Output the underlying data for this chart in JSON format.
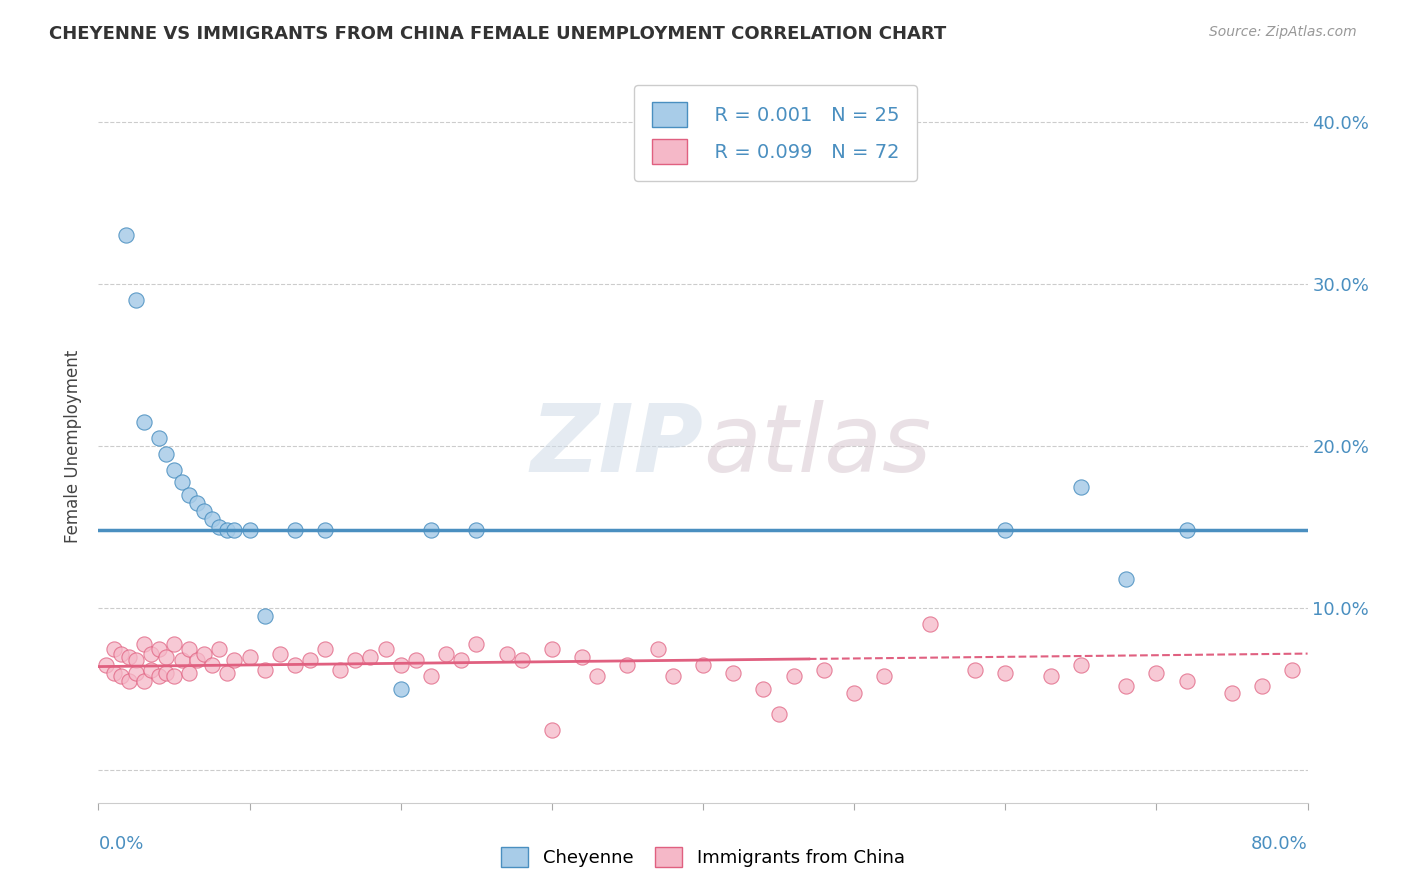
{
  "title": "CHEYENNE VS IMMIGRANTS FROM CHINA FEMALE UNEMPLOYMENT CORRELATION CHART",
  "source": "Source: ZipAtlas.com",
  "ylabel": "Female Unemployment",
  "legend_labels": [
    "Cheyenne",
    "Immigrants from China"
  ],
  "legend_r": [
    "R = 0.001",
    "R = 0.099"
  ],
  "legend_n": [
    "N = 25",
    "N = 72"
  ],
  "x_min": 0.0,
  "x_max": 0.8,
  "y_min": -0.02,
  "y_max": 0.42,
  "yticks": [
    0.0,
    0.1,
    0.2,
    0.3,
    0.4
  ],
  "ytick_labels": [
    "",
    "10.0%",
    "20.0%",
    "30.0%",
    "40.0%"
  ],
  "color_blue": "#a8cce8",
  "color_pink": "#f5b8c8",
  "color_blue_dark": "#4a8fc0",
  "color_pink_dark": "#e06080",
  "watermark_zip": "ZIP",
  "watermark_atlas": "atlas",
  "cheyenne_x": [
    0.018,
    0.025,
    0.03,
    0.04,
    0.045,
    0.05,
    0.055,
    0.06,
    0.065,
    0.07,
    0.075,
    0.08,
    0.085,
    0.09,
    0.1,
    0.11,
    0.13,
    0.15,
    0.2,
    0.22,
    0.25,
    0.6,
    0.65,
    0.68,
    0.72
  ],
  "cheyenne_y": [
    0.33,
    0.29,
    0.215,
    0.205,
    0.195,
    0.185,
    0.178,
    0.17,
    0.165,
    0.16,
    0.155,
    0.15,
    0.148,
    0.148,
    0.148,
    0.095,
    0.148,
    0.148,
    0.05,
    0.148,
    0.148,
    0.148,
    0.175,
    0.118,
    0.148
  ],
  "cheyenne_trend_x": [
    0.0,
    0.8
  ],
  "cheyenne_trend_y": [
    0.148,
    0.148
  ],
  "immigrants_x": [
    0.005,
    0.01,
    0.01,
    0.015,
    0.015,
    0.02,
    0.02,
    0.025,
    0.025,
    0.03,
    0.03,
    0.035,
    0.035,
    0.04,
    0.04,
    0.045,
    0.045,
    0.05,
    0.05,
    0.055,
    0.06,
    0.06,
    0.065,
    0.07,
    0.075,
    0.08,
    0.085,
    0.09,
    0.1,
    0.11,
    0.12,
    0.13,
    0.14,
    0.15,
    0.16,
    0.17,
    0.18,
    0.19,
    0.2,
    0.21,
    0.22,
    0.23,
    0.24,
    0.25,
    0.27,
    0.28,
    0.3,
    0.32,
    0.33,
    0.35,
    0.37,
    0.38,
    0.4,
    0.42,
    0.44,
    0.46,
    0.48,
    0.5,
    0.52,
    0.55,
    0.58,
    0.6,
    0.63,
    0.65,
    0.68,
    0.7,
    0.72,
    0.75,
    0.77,
    0.79,
    0.3,
    0.45
  ],
  "immigrants_y": [
    0.065,
    0.075,
    0.06,
    0.072,
    0.058,
    0.07,
    0.055,
    0.068,
    0.06,
    0.078,
    0.055,
    0.072,
    0.062,
    0.075,
    0.058,
    0.07,
    0.06,
    0.078,
    0.058,
    0.068,
    0.075,
    0.06,
    0.068,
    0.072,
    0.065,
    0.075,
    0.06,
    0.068,
    0.07,
    0.062,
    0.072,
    0.065,
    0.068,
    0.075,
    0.062,
    0.068,
    0.07,
    0.075,
    0.065,
    0.068,
    0.058,
    0.072,
    0.068,
    0.078,
    0.072,
    0.068,
    0.075,
    0.07,
    0.058,
    0.065,
    0.075,
    0.058,
    0.065,
    0.06,
    0.05,
    0.058,
    0.062,
    0.048,
    0.058,
    0.09,
    0.062,
    0.06,
    0.058,
    0.065,
    0.052,
    0.06,
    0.055,
    0.048,
    0.052,
    0.062,
    0.025,
    0.035
  ],
  "immigrants_trend_x": [
    0.0,
    0.8
  ],
  "immigrants_trend_y": [
    0.064,
    0.072
  ]
}
